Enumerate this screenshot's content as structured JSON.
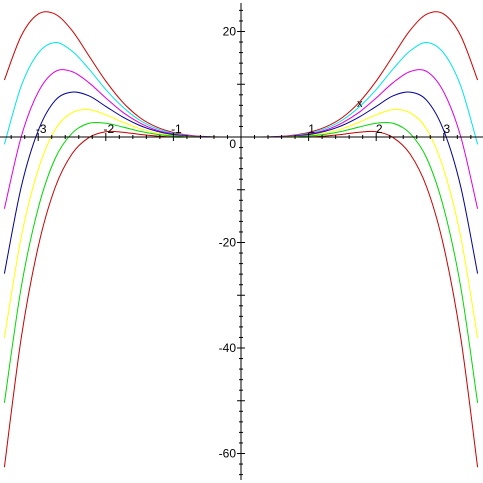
{
  "chart_data": {
    "type": "line",
    "xlabel": "x",
    "ylabel": "",
    "xlim": [
      -3.55,
      3.55
    ],
    "ylim": [
      -65,
      25
    ],
    "x_ticks": [
      -3,
      -2,
      -1,
      1,
      2,
      3
    ],
    "x_tick_labels": [
      "-3",
      "-2",
      "-1",
      "1",
      "2",
      "3"
    ],
    "y_ticks": [
      20,
      -20,
      -40,
      -60
    ],
    "y_tick_labels": [
      "20",
      "-20",
      "-40",
      "-60"
    ],
    "origin_label": "0",
    "grid": false,
    "legend": "none",
    "x": [
      -3.5,
      -3.25,
      -3.0,
      -2.75,
      -2.5,
      -2.25,
      -2.0,
      -1.75,
      -1.5,
      -1.25,
      -1.0,
      -0.75,
      -0.5,
      -0.25,
      0.0,
      0.25,
      0.5,
      0.75,
      1.0,
      1.25,
      1.5,
      1.75,
      2.0,
      2.25,
      2.5,
      2.75,
      3.0,
      3.25,
      3.5
    ],
    "series": [
      {
        "color": "#d00000",
        "values": [
          10.8,
          19.2,
          23.3,
          23.3,
          20.2,
          15.4,
          10.6,
          6.6,
          3.7,
          1.9,
          0.86,
          0.31,
          0.06,
          0.0,
          0.0,
          0.0,
          0.06,
          0.31,
          0.86,
          1.9,
          3.7,
          6.6,
          10.6,
          15.4,
          20.2,
          23.3,
          23.3,
          19.2,
          10.8
        ]
      },
      {
        "color": "#00e5e5",
        "values": [
          -1.4,
          9.7,
          15.9,
          17.9,
          16.3,
          12.9,
          9.0,
          5.7,
          3.2,
          1.6,
          0.71,
          0.24,
          0.04,
          0.0,
          0.0,
          0.0,
          0.04,
          0.24,
          0.71,
          1.6,
          3.2,
          5.7,
          9.0,
          12.9,
          16.3,
          17.9,
          15.9,
          9.7,
          -1.4
        ]
      },
      {
        "color": "#e000e0",
        "values": [
          -13.6,
          0.1,
          8.5,
          12.4,
          12.4,
          10.3,
          7.4,
          4.7,
          2.7,
          1.3,
          0.56,
          0.18,
          0.03,
          0.0,
          0.0,
          0.0,
          0.03,
          0.18,
          0.56,
          1.3,
          2.7,
          4.7,
          7.4,
          10.3,
          12.4,
          12.4,
          8.5,
          0.1,
          -13.6
        ]
      },
      {
        "color": "#00009a",
        "values": [
          -25.9,
          -9.4,
          1.2,
          6.9,
          8.5,
          7.8,
          5.8,
          3.8,
          2.2,
          1.1,
          0.42,
          0.12,
          0.02,
          0.0,
          0.0,
          0.0,
          0.02,
          0.12,
          0.42,
          1.1,
          2.2,
          3.8,
          5.8,
          7.8,
          8.5,
          6.9,
          1.2,
          -9.4,
          -25.9
        ]
      },
      {
        "color": "#ffff00",
        "values": [
          -38.1,
          -18.9,
          -6.2,
          1.4,
          4.6,
          5.2,
          4.2,
          2.8,
          1.6,
          0.77,
          0.27,
          0.06,
          0.0,
          0.0,
          0.0,
          0.0,
          0.0,
          0.06,
          0.27,
          0.77,
          1.6,
          2.8,
          4.2,
          5.2,
          4.6,
          1.4,
          -6.2,
          -18.9,
          -38.1
        ]
      },
      {
        "color": "#00d800",
        "values": [
          -50.4,
          -28.4,
          -13.5,
          -4.1,
          0.7,
          2.6,
          2.6,
          1.9,
          1.1,
          0.53,
          0.18,
          0.02,
          0.0,
          0.0,
          0.0,
          0.0,
          0.0,
          0.02,
          0.18,
          0.53,
          1.1,
          1.9,
          2.6,
          2.6,
          0.7,
          -4.1,
          -13.5,
          -28.4,
          -50.4
        ]
      },
      {
        "color": "#c80000",
        "values": [
          -62.6,
          -38.0,
          -20.8,
          -9.6,
          -3.2,
          -0.1,
          1.0,
          0.9,
          0.5,
          0.2,
          0.0,
          0.0,
          0.0,
          0.0,
          0.0,
          0.0,
          0.0,
          0.0,
          0.0,
          0.2,
          0.5,
          0.9,
          1.0,
          -0.1,
          -3.2,
          -9.6,
          -20.8,
          -38.0,
          -62.6
        ]
      }
    ]
  }
}
